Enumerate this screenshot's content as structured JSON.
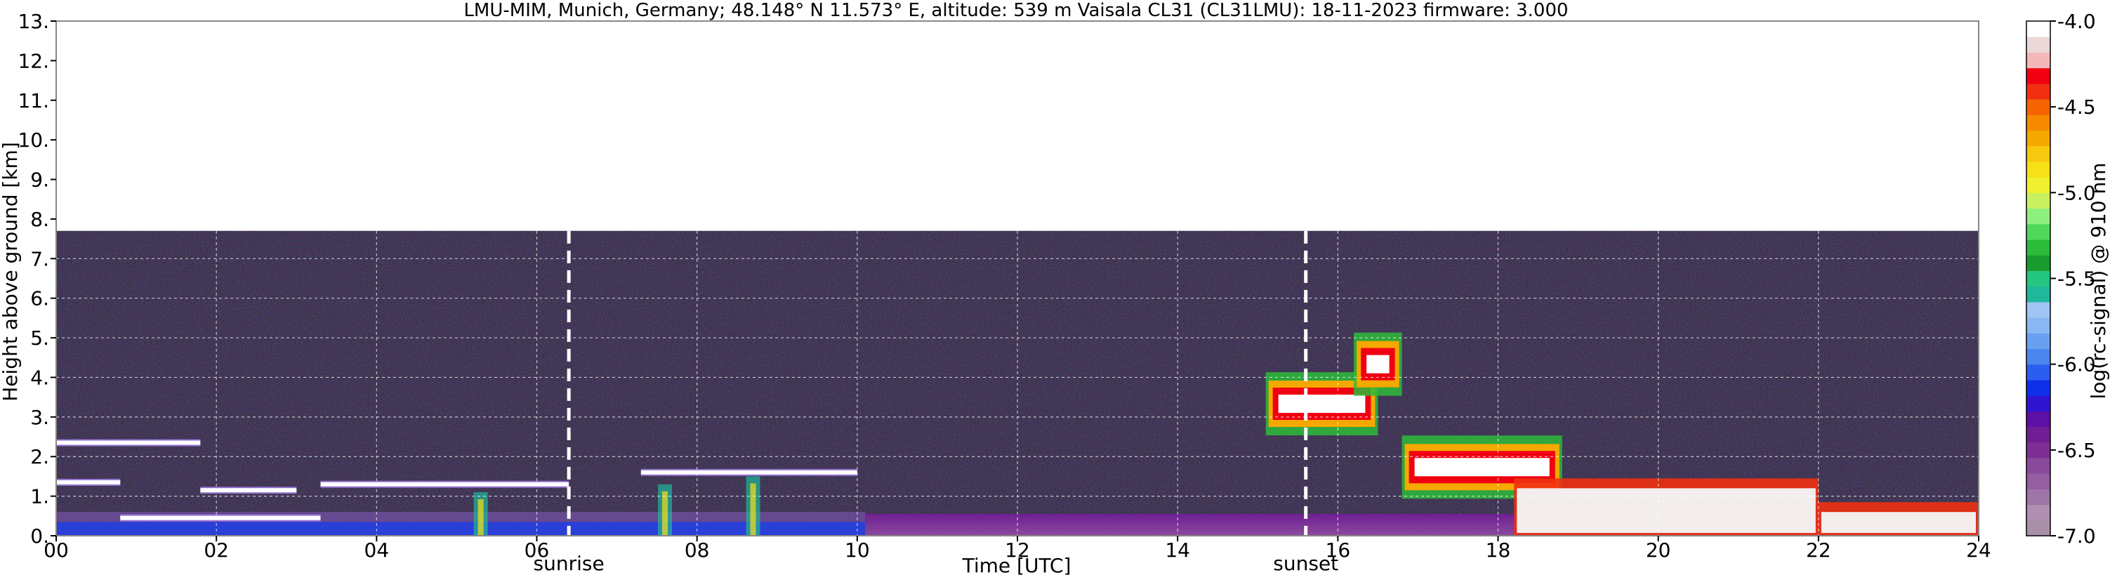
{
  "chart_data": {
    "type": "heatmap",
    "title": "LMU-MIM, Munich, Germany; 48.148° N 11.573° E, altitude: 539 m    Vaisala CL31 (CL31LMU): 18-11-2023    firmware: 3.000",
    "xlabel": "Time [UTC]",
    "ylabel": "Height above ground [km]",
    "xlim": [
      0,
      24
    ],
    "ylim": [
      0,
      13
    ],
    "x_ticks": [
      "00",
      "02",
      "04",
      "06",
      "08",
      "10",
      "12",
      "14",
      "16",
      "18",
      "20",
      "22",
      "24"
    ],
    "y_ticks": [
      "0.",
      "1.",
      "2.",
      "3.",
      "4.",
      "5.",
      "6.",
      "7.",
      "8.",
      "9.",
      "10.",
      "11.",
      "12.",
      "13."
    ],
    "grid": true,
    "annotations": [
      {
        "label": "sunrise",
        "x": 6.4
      },
      {
        "label": "sunset",
        "x": 15.6
      }
    ],
    "colorbar": {
      "label": "log(rc-signal) @ 910 nm",
      "range": [
        -7.0,
        -4.0
      ],
      "ticks": [
        "-4.0",
        "-4.5",
        "-5.0",
        "-5.5",
        "-6.0",
        "-6.5",
        "-7.0"
      ],
      "colors": [
        "#a891a8",
        "#b08fb2",
        "#9e76a7",
        "#955ea1",
        "#8a4a9c",
        "#7d2f96",
        "#6f1f93",
        "#5d10a4",
        "#2f15d0",
        "#1030e8",
        "#2a5ef0",
        "#4a86ee",
        "#6aa0f0",
        "#8ab6f2",
        "#a0c4f4",
        "#1fb89a",
        "#25c680",
        "#1a9b30",
        "#2dbb3a",
        "#4fd85a",
        "#8ef07e",
        "#c8f060",
        "#f0f030",
        "#f7e018",
        "#f7c810",
        "#f5a800",
        "#f58a00",
        "#f56400",
        "#f03010",
        "#f00010",
        "#f4b8b8",
        "#ebd8d8",
        "#ffffff"
      ]
    },
    "signal_top_km": 7.7,
    "features": [
      {
        "kind": "cloud_layer",
        "x_start": 0.0,
        "x_end": 0.8,
        "height_km": 1.35
      },
      {
        "kind": "cloud_layer",
        "x_start": 0.0,
        "x_end": 1.8,
        "height_km": 2.35
      },
      {
        "kind": "cloud_layer",
        "x_start": 0.8,
        "x_end": 3.3,
        "height_km": 0.45
      },
      {
        "kind": "cloud_layer",
        "x_start": 1.8,
        "x_end": 3.0,
        "height_km": 1.15
      },
      {
        "kind": "cloud_layer",
        "x_start": 3.3,
        "x_end": 6.4,
        "height_km": 1.3
      },
      {
        "kind": "cloud_layer",
        "x_start": 7.3,
        "x_end": 10.0,
        "height_km": 1.6
      },
      {
        "kind": "precipitation_streak",
        "x": 5.3,
        "height_km": 1.1
      },
      {
        "kind": "precipitation_streak",
        "x": 7.6,
        "height_km": 1.3
      },
      {
        "kind": "precipitation_streak",
        "x": 8.7,
        "height_km": 1.5
      },
      {
        "kind": "cloud_layer",
        "x_start": 15.1,
        "x_end": 16.5,
        "height_km": 3.6
      },
      {
        "kind": "cloud_layer",
        "x_start": 16.2,
        "x_end": 16.8,
        "height_km": 4.6
      },
      {
        "kind": "cloud_layer",
        "x_start": 16.8,
        "x_end": 18.8,
        "height_km": 2.0
      },
      {
        "kind": "cloud_layer",
        "x_start": 18.2,
        "x_end": 22.0,
        "height_km": 1.2
      },
      {
        "kind": "cloud_layer",
        "x_start": 22.0,
        "x_end": 24.0,
        "height_km": 0.6
      }
    ]
  }
}
